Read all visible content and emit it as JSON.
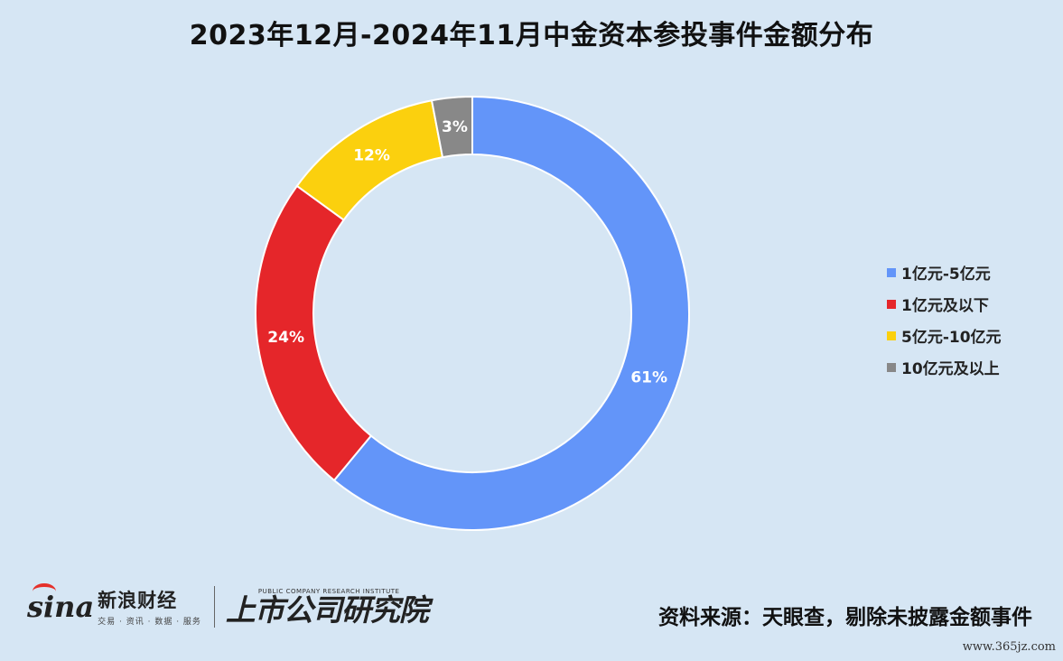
{
  "title": "2023年12月-2024年11月中金资本参投事件金额分布",
  "chart_data": {
    "type": "pie",
    "donut": true,
    "title": "2023年12月-2024年11月中金资本参投事件金额分布",
    "categories": [
      "1亿元-5亿元",
      "1亿元及以下",
      "5亿元-10亿元",
      "10亿元及以上"
    ],
    "values": [
      61,
      24,
      12,
      3
    ],
    "labels": [
      "61%",
      "24%",
      "12%",
      "3%"
    ],
    "colors": [
      "#6395f9",
      "#e5262a",
      "#fbd00e",
      "#888888"
    ],
    "legend_position": "right"
  },
  "legend": {
    "items": [
      {
        "label": "1亿元-5亿元",
        "color": "#6395f9"
      },
      {
        "label": "1亿元及以下",
        "color": "#e5262a"
      },
      {
        "label": "5亿元-10亿元",
        "color": "#fbd00e"
      },
      {
        "label": "10亿元及以上",
        "color": "#888888"
      }
    ]
  },
  "footer": {
    "source": "资料来源：天眼查，剔除未披露金额事件",
    "sina_mark": "sina",
    "sina_name": "新浪财经",
    "sina_tag": "交易 · 资讯 · 数据 · 服务",
    "institute_en": "PUBLIC COMPANY RESEARCH INSTITUTE",
    "institute_cn": "上市公司研究院",
    "watermark": "www.365jz.com"
  }
}
